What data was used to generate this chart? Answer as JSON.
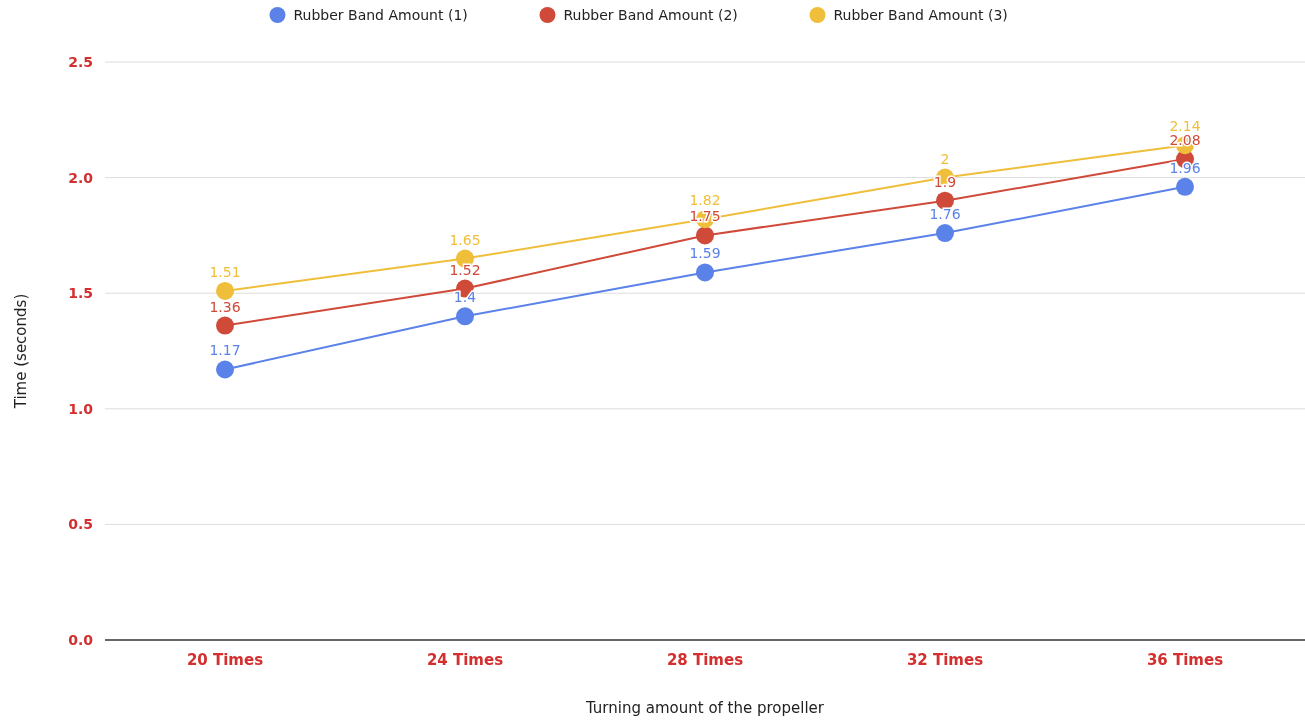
{
  "chart_data": {
    "type": "line",
    "xlabel": "Turning amount of the propeller",
    "ylabel": "Time (seconds)",
    "categories": [
      "20 Times",
      "24 Times",
      "28 Times",
      "32 Times",
      "36 Times"
    ],
    "series": [
      {
        "name": "Rubber Band Amount (1)",
        "color": "#5b82e8",
        "values": [
          1.17,
          1.4,
          1.59,
          1.76,
          1.96
        ]
      },
      {
        "name": "Rubber Band Amount (2)",
        "color": "#d04a3a",
        "values": [
          1.36,
          1.52,
          1.75,
          1.9,
          2.08
        ]
      },
      {
        "name": "Rubber Band Amount (3)",
        "color": "#efbe3a",
        "values": [
          1.51,
          1.65,
          1.82,
          2,
          2.14
        ]
      }
    ],
    "ylim": [
      0,
      2.5
    ],
    "yticks": [
      {
        "value": 0,
        "label": "0.0"
      },
      {
        "value": 0.5,
        "label": "0.5"
      },
      {
        "value": 1,
        "label": "1.0"
      },
      {
        "value": 1.5,
        "label": "1.5"
      },
      {
        "value": 2,
        "label": "2.0"
      },
      {
        "value": 2.5,
        "label": "2.5"
      }
    ],
    "grid": "y",
    "legend": "top",
    "marker": "circle",
    "line_style": "solid",
    "data_labels": true
  }
}
